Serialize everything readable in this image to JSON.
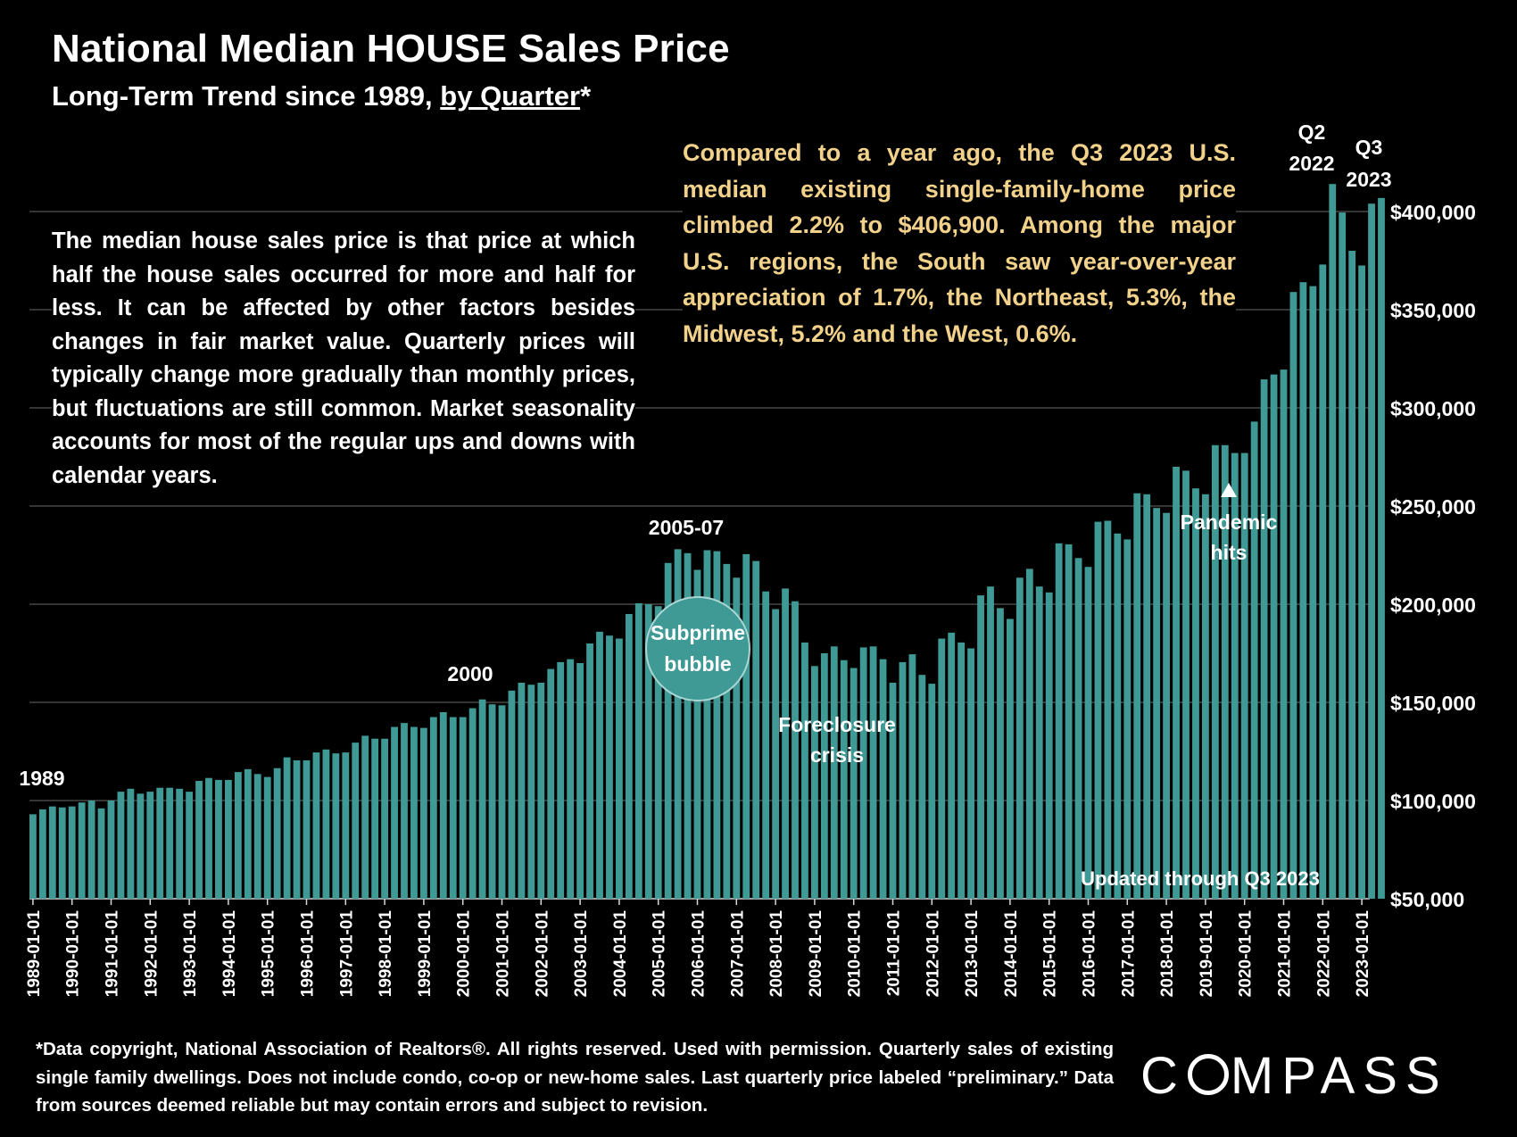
{
  "header": {
    "title": "National Median HOUSE Sales Price",
    "subtitle_prefix": "Long-Term Trend since 1989, ",
    "subtitle_underlined": "by Quarter",
    "subtitle_suffix": "*"
  },
  "description": "The median house sales price is that price at which half the house sales occurred for more and half for less. It can be affected by other factors besides changes in fair market value. Quarterly prices will typically change more gradually than monthly prices, but fluctuations are still common. Market seasonality accounts for most of the regular ups and downs with calendar years.",
  "highlight": "Compared to a year ago, the Q3 2023 U.S. median existing single-family-home price climbed 2.2% to $406,900. Among the major U.S. regions, the South saw year-over-year appreciation of 1.7%, the Northeast, 5.3%, the Midwest, 5.2% and the West, 0.6%.",
  "footnote": "*Data copyright, National Association of Realtors®. All rights reserved. Used with permission. Quarterly sales of existing single family dwellings. Does not include condo, co-op or new-home sales. Last quarterly price labeled “preliminary.” Data from sources deemed reliable but may contain errors and subject to revision.",
  "logo": {
    "before": "C",
    "after": "MPASS"
  },
  "colors": {
    "bar": "#3f9a96",
    "highlight": "#f2d28a",
    "grid": "#555555",
    "bubble": "#3f9a96"
  },
  "chart_data": {
    "type": "bar",
    "title": "National Median HOUSE Sales Price",
    "ylim": [
      50000,
      400000
    ],
    "yticks": [
      50000,
      100000,
      150000,
      200000,
      250000,
      300000,
      350000,
      400000
    ],
    "ytick_labels": [
      "$50,000",
      "$100,000",
      "$150,000",
      "$200,000",
      "$250,000",
      "$300,000",
      "$350,000",
      "$400,000"
    ],
    "start_year": 1989,
    "xtick_labels": [
      "1989-01-01",
      "1990-01-01",
      "1991-01-01",
      "1992-01-01",
      "1993-01-01",
      "1994-01-01",
      "1995-01-01",
      "1996-01-01",
      "1997-01-01",
      "1998-01-01",
      "1999-01-01",
      "2000-01-01",
      "2001-01-01",
      "2002-01-01",
      "2003-01-01",
      "2004-01-01",
      "2005-01-01",
      "2006-01-01",
      "2007-01-01",
      "2008-01-01",
      "2009-01-01",
      "2010-01-01",
      "2011-01-01",
      "2012-01-01",
      "2013-01-01",
      "2014-01-01",
      "2015-01-01",
      "2016-01-01",
      "2017-01-01",
      "2018-01-01",
      "2019-01-01",
      "2020-01-01",
      "2021-01-01",
      "2022-01-01",
      "2023-01-01"
    ],
    "values": [
      93000,
      95500,
      97000,
      96500,
      97000,
      99000,
      100000,
      96000,
      100000,
      104500,
      106000,
      103500,
      104500,
      106500,
      106500,
      106000,
      104500,
      110000,
      111500,
      110500,
      110500,
      114500,
      116000,
      113500,
      112000,
      116500,
      122000,
      120500,
      120500,
      124500,
      126000,
      124000,
      124500,
      129500,
      133000,
      131500,
      131500,
      137500,
      139500,
      137500,
      137000,
      142500,
      145000,
      142500,
      142500,
      147000,
      151500,
      149000,
      148500,
      156000,
      160000,
      159000,
      160000,
      167000,
      170500,
      172000,
      170000,
      180000,
      186000,
      184000,
      182500,
      195000,
      200500,
      200000,
      199000,
      221000,
      228000,
      226000,
      217500,
      227500,
      227000,
      220500,
      213500,
      225500,
      222000,
      206500,
      197500,
      208000,
      201500,
      180500,
      168500,
      175000,
      178500,
      171500,
      167500,
      178000,
      178500,
      172000,
      160000,
      170500,
      174500,
      164000,
      159500,
      182500,
      185500,
      180500,
      177500,
      204500,
      209000,
      198000,
      192500,
      213500,
      218000,
      209000,
      206000,
      231000,
      230500,
      223500,
      219000,
      242000,
      242500,
      236000,
      233000,
      256500,
      256000,
      249000,
      246500,
      270000,
      268000,
      259000,
      256000,
      281000,
      281000,
      277000,
      277000,
      293000,
      314500,
      317000,
      319500,
      359000,
      364000,
      362000,
      373000,
      414000,
      399500,
      380000,
      372500,
      404000,
      406900
    ],
    "annotations": {
      "y1989": "1989",
      "y2000": "2000",
      "y2005": "2005-07",
      "subprime_line1": "Subprime",
      "subprime_line2": "bubble",
      "foreclosure_line1": "Foreclosure",
      "foreclosure_line2": "crisis",
      "pandemic_line1": "Pandemic",
      "pandemic_line2": "hits",
      "q2_2022_line1": "Q2",
      "q2_2022_line2": "2022",
      "q3_2023_line1": "Q3",
      "q3_2023_line2": "2023",
      "updated": "Updated through Q3 2023"
    }
  }
}
